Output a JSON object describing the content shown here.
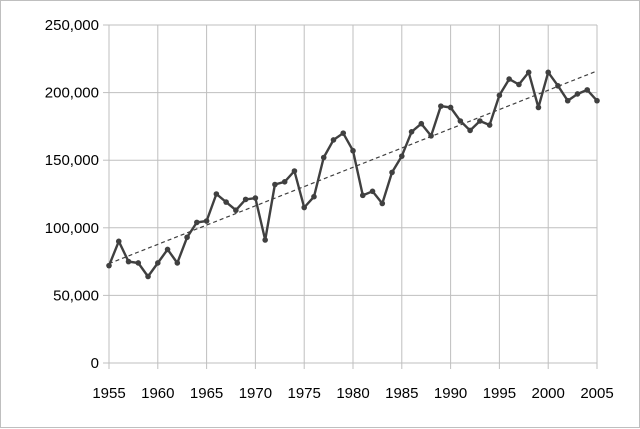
{
  "chart_data": {
    "type": "line",
    "title": "",
    "xlabel": "",
    "ylabel": "",
    "xlim": [
      1955,
      2005
    ],
    "ylim": [
      0,
      250000
    ],
    "x_ticks": [
      1955,
      1960,
      1965,
      1970,
      1975,
      1980,
      1985,
      1990,
      1995,
      2000,
      2005
    ],
    "x_tick_labels": [
      "1955",
      "1960",
      "1965",
      "1970",
      "1975",
      "1980",
      "1985",
      "1990",
      "1995",
      "2000",
      "2005"
    ],
    "y_ticks": [
      0,
      50000,
      100000,
      150000,
      200000,
      250000
    ],
    "y_tick_labels": [
      "0",
      "50,000",
      "100,000",
      "150,000",
      "200,000",
      "250,000"
    ],
    "grid": true,
    "legend": "none",
    "colors": {
      "series": "#404040",
      "trend": "#404040",
      "grid": "#bfbfbf"
    },
    "series": [
      {
        "x": [
          1955,
          1956,
          1957,
          1958,
          1959,
          1960,
          1961,
          1962,
          1963,
          1964,
          1965,
          1966,
          1967,
          1968,
          1969,
          1970,
          1971,
          1972,
          1973,
          1974,
          1975,
          1976,
          1977,
          1978,
          1979,
          1980,
          1981,
          1982,
          1983,
          1984,
          1985,
          1986,
          1987,
          1988,
          1989,
          1990,
          1991,
          1992,
          1993,
          1994,
          1995,
          1996,
          1997,
          1998,
          1999,
          2000,
          2001,
          2002,
          2003,
          2004,
          2005
        ],
        "values": [
          72000,
          90000,
          75000,
          74000,
          64000,
          74000,
          84000,
          74000,
          93000,
          104000,
          105000,
          125000,
          119000,
          113000,
          121000,
          122000,
          91000,
          132000,
          134000,
          142000,
          115000,
          123000,
          152000,
          165000,
          170000,
          157000,
          124000,
          127000,
          118000,
          141000,
          153000,
          171000,
          177000,
          168000,
          190000,
          189000,
          179000,
          172000,
          179000,
          176000,
          198000,
          210000,
          206000,
          215000,
          189000,
          215000,
          205000,
          194000,
          199000,
          202000,
          194000
        ]
      },
      {
        "style": "dashed-trendline",
        "x": [
          1955,
          2005
        ],
        "values": [
          73500,
          216000
        ]
      }
    ]
  }
}
